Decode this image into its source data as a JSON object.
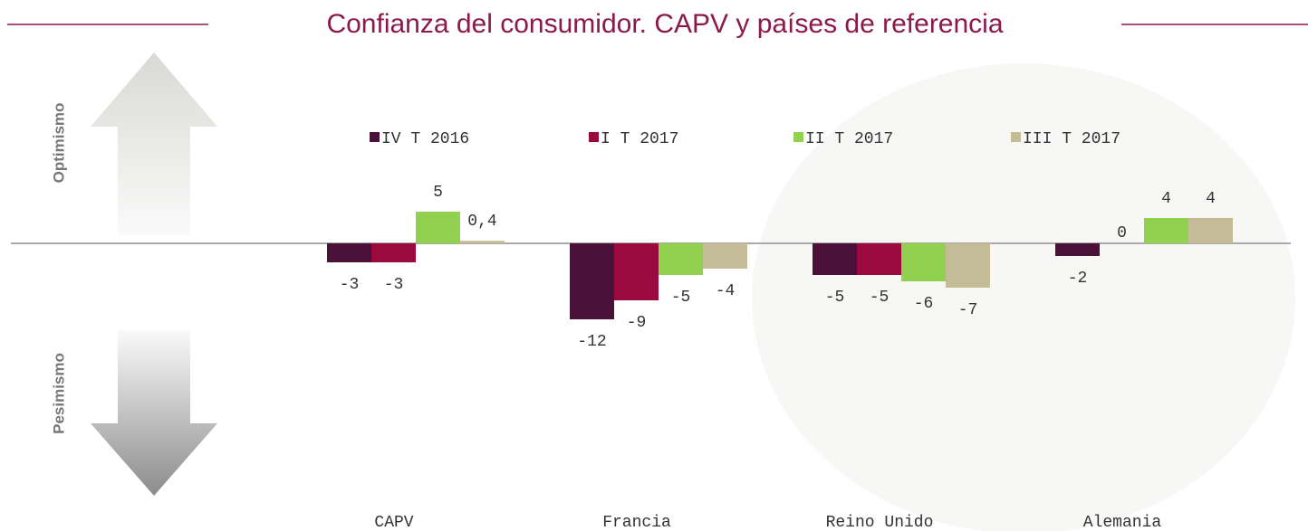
{
  "chart_data": {
    "type": "bar",
    "title": "Confianza del consumidor. CAPV y países de referencia",
    "annotations": [
      "Optimismo",
      "Pesimismo"
    ],
    "categories": [
      "CAPV",
      "Francia",
      "Reino Unido",
      "Alemania"
    ],
    "series": [
      {
        "name": "IV T 2016",
        "color": "#4a1238",
        "values": [
          -3,
          -12,
          -5,
          -2
        ]
      },
      {
        "name": "I T 2017",
        "color": "#9b0a3f",
        "values": [
          -3,
          -9,
          -5,
          0
        ]
      },
      {
        "name": "II T 2017",
        "color": "#92d050",
        "values": [
          5,
          -5,
          -6,
          4
        ]
      },
      {
        "name": "III T 2017",
        "color": "#c4bc96",
        "values": [
          0.4,
          -4,
          -7,
          4
        ],
        "value_labels": [
          "0,4",
          "-4",
          "-7",
          "4"
        ]
      }
    ],
    "ylim": [
      -40,
      30
    ]
  }
}
